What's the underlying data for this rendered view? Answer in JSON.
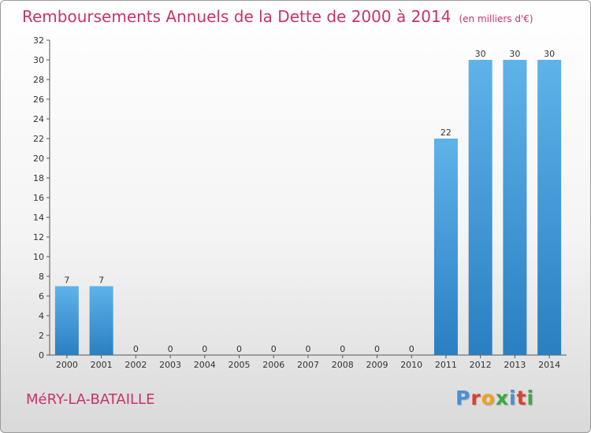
{
  "header": {
    "title": "Remboursements Annuels de la Dette de 2000 à 2014",
    "unit": "(en milliers d'€)"
  },
  "footer": {
    "commune": "MéRY-LA-BATAILLE",
    "logo_text": "Proxiti",
    "logo_colors": [
      "#4a8fd4",
      "#d9412f",
      "#f0a020",
      "#3aa845",
      "#4a8fd4",
      "#d9412f",
      "#3aa845"
    ]
  },
  "colors": {
    "title": "#c8326b",
    "bar_top": "#5eb3ea",
    "bar_bottom": "#2a7fc1",
    "axis": "#555555",
    "text": "#333333"
  },
  "chart_data": {
    "type": "bar",
    "title": "Remboursements Annuels de la Dette de 2000 à 2014",
    "xlabel": "",
    "ylabel": "",
    "categories": [
      "2000",
      "2001",
      "2002",
      "2003",
      "2004",
      "2005",
      "2006",
      "2007",
      "2008",
      "2009",
      "2010",
      "2011",
      "2012",
      "2013",
      "2014"
    ],
    "values": [
      7,
      7,
      0,
      0,
      0,
      0,
      0,
      0,
      0,
      0,
      0,
      22,
      30,
      30,
      30
    ],
    "ylim": [
      0,
      32
    ],
    "yticks": [
      0,
      2,
      4,
      6,
      8,
      10,
      12,
      14,
      16,
      18,
      20,
      22,
      24,
      26,
      28,
      30,
      32
    ],
    "grid": false,
    "legend": "none"
  }
}
